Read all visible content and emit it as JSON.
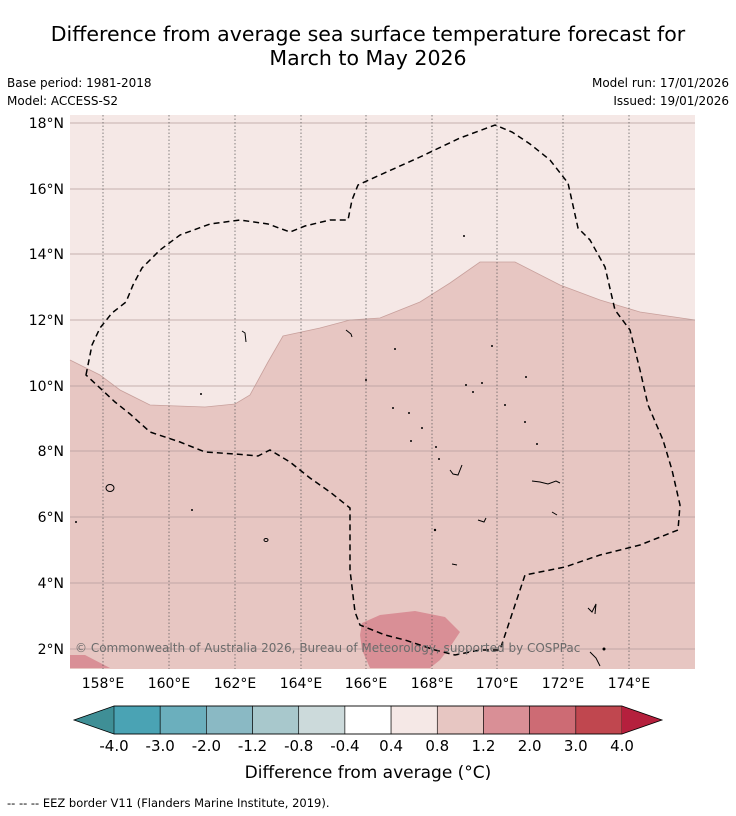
{
  "title": {
    "line1": "Difference from average sea surface temperature forecast for",
    "line2": "March to May 2026"
  },
  "meta": {
    "base_period": "Base period: 1981-2018",
    "model": "Model: ACCESS-S2",
    "model_run": "Model run: 17/01/2026",
    "issued": "Issued: 19/01/2026"
  },
  "map": {
    "lat_labels": [
      "18°N",
      "16°N",
      "14°N",
      "12°N",
      "10°N",
      "8°N",
      "6°N",
      "4°N",
      "2°N"
    ],
    "lon_labels": [
      "158°E",
      "160°E",
      "162°E",
      "164°E",
      "166°E",
      "168°E",
      "170°E",
      "172°E",
      "174°E"
    ],
    "copyright": "© Commonwealth of Australia 2026, Bureau of Meteorology, supported by COSPPac"
  },
  "colorbar": {
    "tick_labels": [
      "-4.0",
      "-3.0",
      "-2.0",
      "-1.2",
      "-0.8",
      "-0.4",
      "0.4",
      "0.8",
      "1.2",
      "2.0",
      "3.0",
      "4.0"
    ],
    "colors": [
      "#4aa3b4",
      "#6bafbd",
      "#8ab9c4",
      "#a8c8cc",
      "#ccdadb",
      "#ffffff",
      "#f5e8e6",
      "#e7c6c2",
      "#d98f96",
      "#cd6b74",
      "#c0474f"
    ],
    "under_color": "#3f8f96",
    "over_color": "#b5203d",
    "label": "Difference from average (°C)"
  },
  "footer": {
    "legend_line": "-- -- -- EEZ border V11 (Flanders Marine Institute, 2019)."
  }
}
